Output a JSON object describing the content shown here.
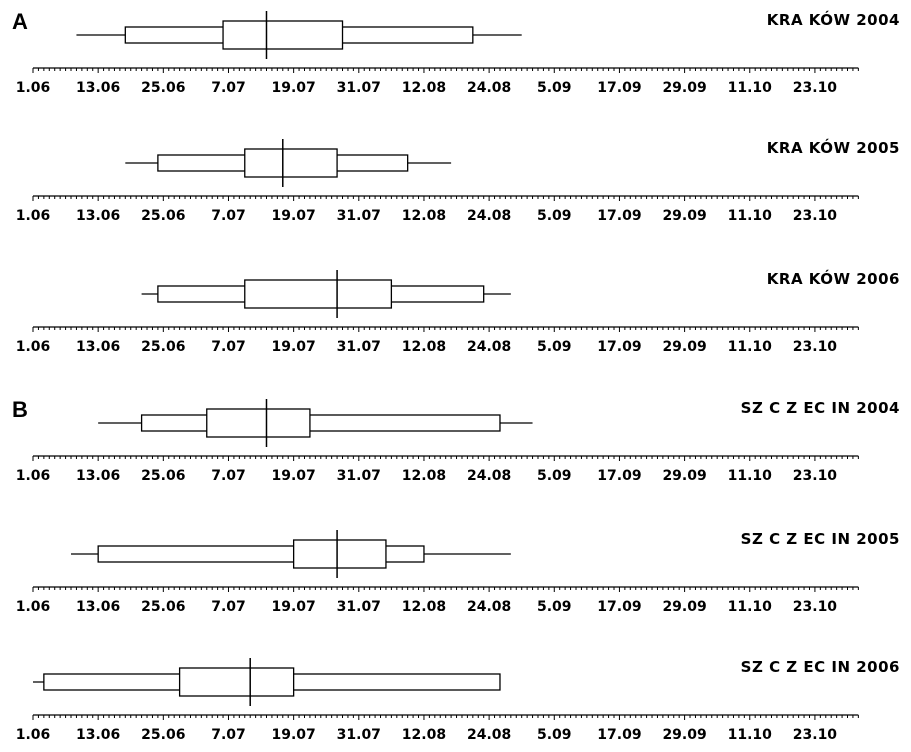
{
  "sections": [
    {
      "letter": "A"
    },
    {
      "letter": "B"
    }
  ],
  "chart_data": [
    {
      "type": "boxplot",
      "title": "KRA KÓW 2004",
      "section": "A",
      "x_tick_labels": [
        "1.06",
        "13.06",
        "25.06",
        "7.07",
        "19.07",
        "31.07",
        "12.08",
        "24.08",
        "5.09",
        "17.09",
        "29.09",
        "11.10",
        "23.10"
      ],
      "xlim": [
        "1.06",
        "31.10"
      ],
      "whisker_low": "9.06",
      "q10": "18.06",
      "q25": "6.07",
      "median": "14.07",
      "q75": "28.07",
      "q90": "21.08",
      "whisker_high": "30.08"
    },
    {
      "type": "boxplot",
      "title": "KRA KÓW 2005",
      "section": "A",
      "x_tick_labels": [
        "1.06",
        "13.06",
        "25.06",
        "7.07",
        "19.07",
        "31.07",
        "12.08",
        "24.08",
        "5.09",
        "17.09",
        "29.09",
        "11.10",
        "23.10"
      ],
      "xlim": [
        "1.06",
        "31.10"
      ],
      "whisker_low": "18.06",
      "q10": "24.06",
      "q25": "10.07",
      "median": "17.07",
      "q75": "27.07",
      "q90": "9.08",
      "whisker_high": "17.08"
    },
    {
      "type": "boxplot",
      "title": "KRA KÓW 2006",
      "section": "A",
      "x_tick_labels": [
        "1.06",
        "13.06",
        "25.06",
        "7.07",
        "19.07",
        "31.07",
        "12.08",
        "24.08",
        "5.09",
        "17.09",
        "29.09",
        "11.10",
        "23.10"
      ],
      "xlim": [
        "1.06",
        "31.10"
      ],
      "whisker_low": "21.06",
      "q10": "24.06",
      "q25": "10.07",
      "median": "27.07",
      "q75": "6.08",
      "q90": "23.08",
      "whisker_high": "28.08"
    },
    {
      "type": "boxplot",
      "title": "SZ C Z EC IN 2004",
      "section": "B",
      "x_tick_labels": [
        "1.06",
        "13.06",
        "25.06",
        "7.07",
        "19.07",
        "31.07",
        "12.08",
        "24.08",
        "5.09",
        "17.09",
        "29.09",
        "11.10",
        "23.10"
      ],
      "xlim": [
        "1.06",
        "31.10"
      ],
      "whisker_low": "13.06",
      "q10": "21.06",
      "q25": "3.07",
      "median": "14.07",
      "q75": "22.07",
      "q90": "26.08",
      "whisker_high": "1.09"
    },
    {
      "type": "boxplot",
      "title": "SZ C Z EC IN 2005",
      "section": "B",
      "x_tick_labels": [
        "1.06",
        "13.06",
        "25.06",
        "7.07",
        "19.07",
        "31.07",
        "12.08",
        "24.08",
        "5.09",
        "17.09",
        "29.09",
        "11.10",
        "23.10"
      ],
      "xlim": [
        "1.06",
        "31.10"
      ],
      "whisker_low": "8.06",
      "q10": "13.06",
      "q25": "19.07",
      "median": "27.07",
      "q75": "5.08",
      "q90": "12.08",
      "whisker_high": "28.08"
    },
    {
      "type": "boxplot",
      "title": "SZ C Z EC IN 2006",
      "section": "B",
      "x_tick_labels": [
        "1.06",
        "13.06",
        "25.06",
        "7.07",
        "19.07",
        "31.07",
        "12.08",
        "24.08",
        "5.09",
        "17.09",
        "29.09",
        "11.10",
        "23.10"
      ],
      "xlim": [
        "1.06",
        "31.10"
      ],
      "whisker_low": "1.06",
      "q10": "3.06",
      "q25": "28.06",
      "median": "11.07",
      "q75": "19.07",
      "q90": "26.08",
      "whisker_high": "26.08"
    }
  ]
}
